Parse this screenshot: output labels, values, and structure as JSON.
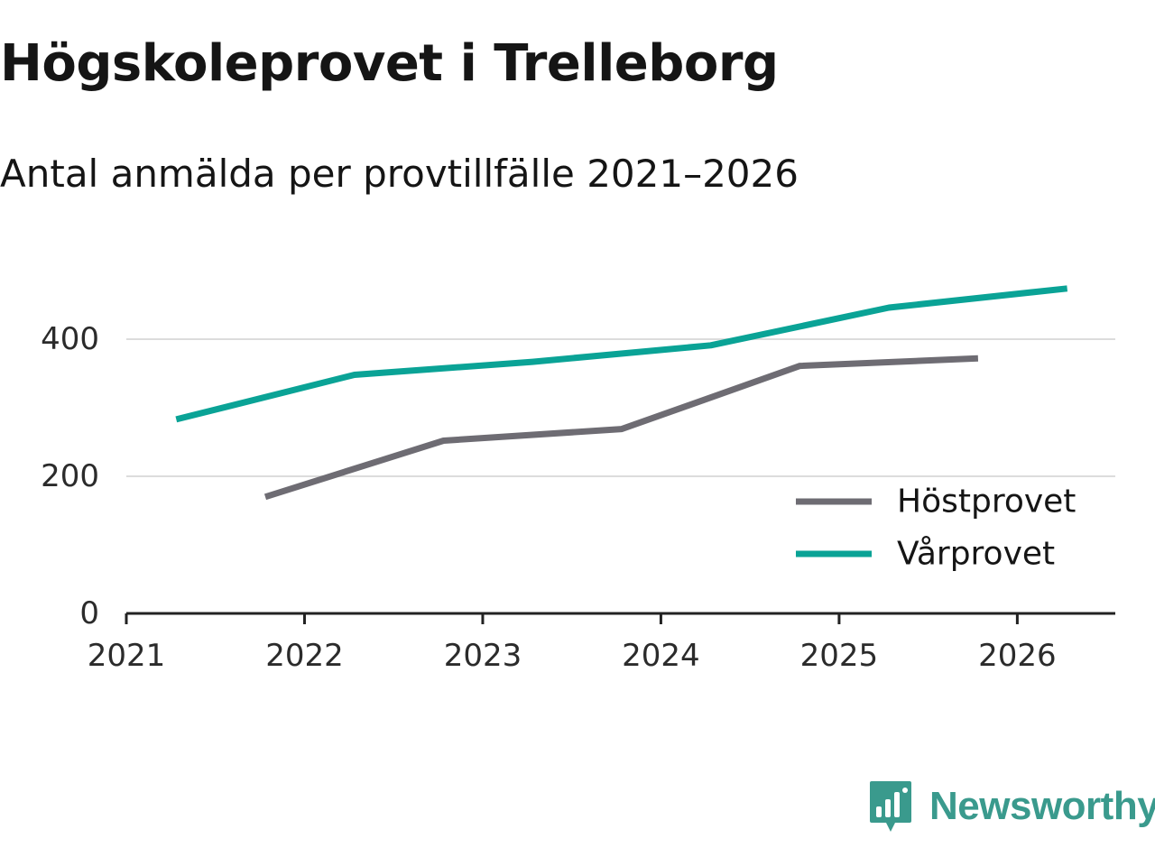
{
  "header": {
    "title": "Högskoleprovet i Trelleborg",
    "subtitle": "Antal anmälda per provtillfälle 2021–2026"
  },
  "chart_data": {
    "type": "line",
    "title": "Högskoleprovet i Trelleborg",
    "subtitle": "Antal anmälda per provtillfälle 2021–2026",
    "xlabel": "",
    "ylabel": "",
    "xlim": [
      2021,
      2026.55
    ],
    "ylim": [
      0,
      500
    ],
    "x_ticks": [
      2021,
      2022,
      2023,
      2024,
      2025,
      2026
    ],
    "y_ticks": [
      0,
      200,
      400
    ],
    "grid": true,
    "legend_position": "bottom-right",
    "series": [
      {
        "name": "Höstprovet",
        "color": "#6e6c73",
        "x": [
          2021.78,
          2022.78,
          2023.78,
          2024.78,
          2025.78
        ],
        "values": [
          170,
          252,
          269,
          361,
          372
        ]
      },
      {
        "name": "Vårprovet",
        "color": "#0aa396",
        "x": [
          2021.28,
          2022.28,
          2023.28,
          2024.28,
          2025.28,
          2026.28
        ],
        "values": [
          283,
          348,
          367,
          391,
          446,
          474
        ]
      }
    ]
  },
  "brand": {
    "label": "Newsworthy",
    "icon": "newsworthy-logo-icon",
    "color": "#3a9a8d"
  }
}
